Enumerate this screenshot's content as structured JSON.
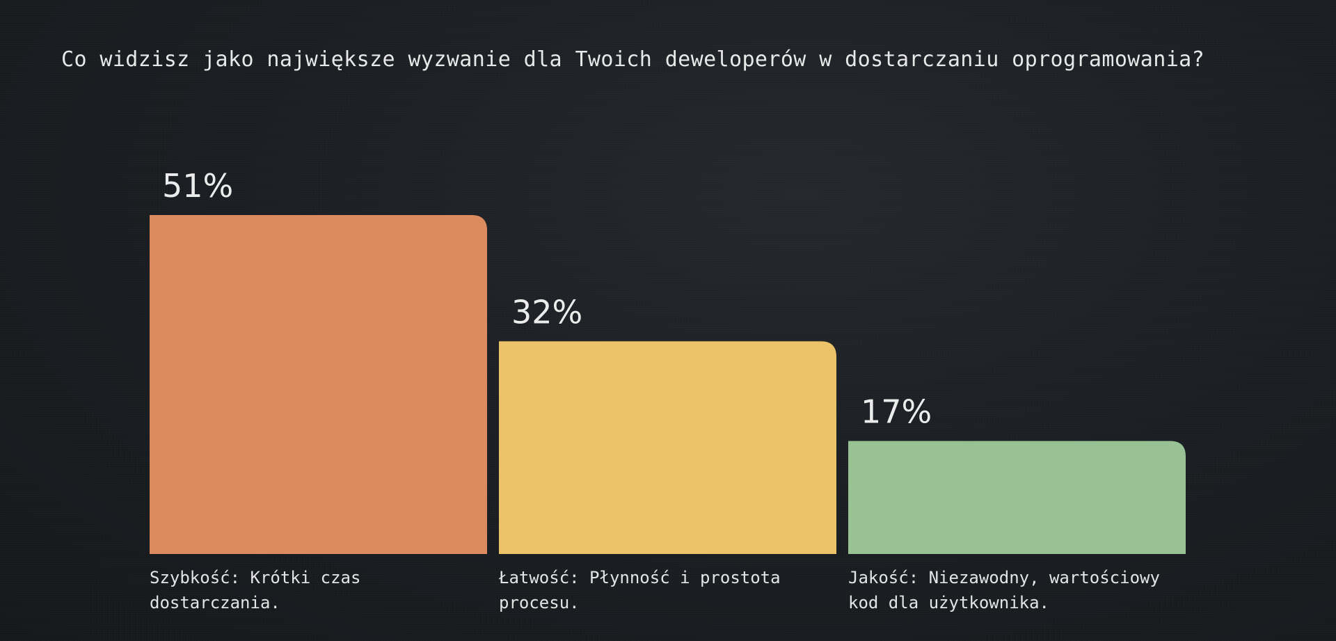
{
  "title": "Co widzisz jako największe wyzwanie dla Twoich deweloperów w dostarczaniu oprogramowania?",
  "chart_data": {
    "type": "bar",
    "title": "Co widzisz jako największe wyzwanie dla Twoich deweloperów w dostarczaniu oprogramowania?",
    "categories": [
      "Szybkość: Krótki czas dostarczania.",
      "Łatwość: Płynność i prostota procesu.",
      "Jakość: Niezawodny, wartościowy kod dla użytkownika."
    ],
    "category_lines": [
      [
        "Szybkość: Krótki czas",
        "dostarczania."
      ],
      [
        "Łatwość: Płynność i prostota",
        "procesu."
      ],
      [
        "Jakość: Niezawodny, wartościowy",
        "kod dla użytkownika."
      ]
    ],
    "values": [
      51,
      32,
      17
    ],
    "value_labels": [
      "51%",
      "32%",
      "17%"
    ],
    "colors": [
      "#dc8b5f",
      "#ecc368",
      "#98c293"
    ],
    "ylim": [
      0,
      100
    ],
    "grid": false,
    "legend": "none"
  }
}
